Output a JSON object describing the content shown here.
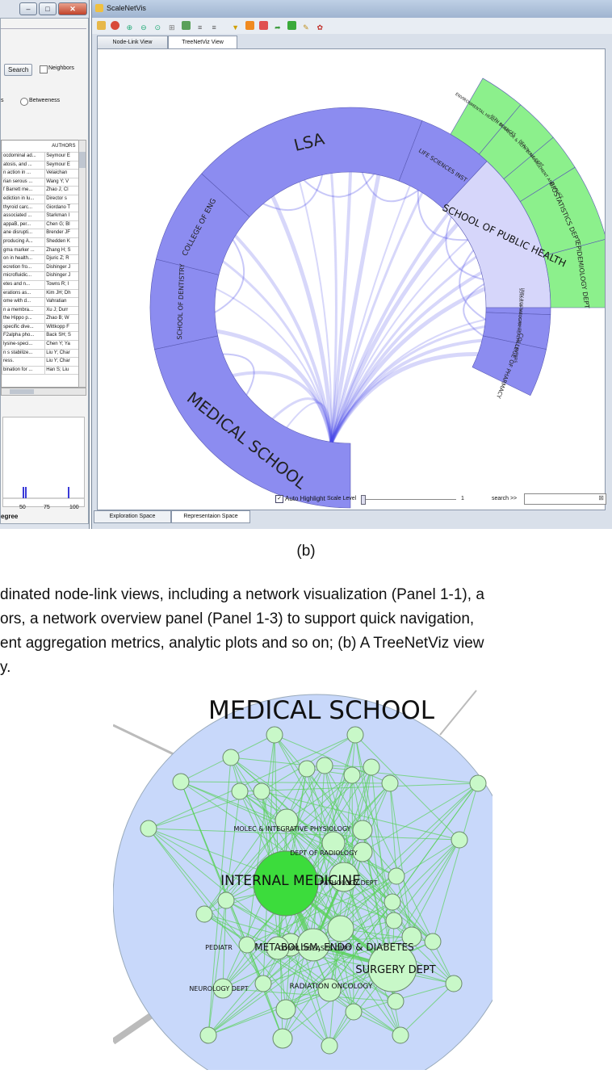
{
  "left_window": {
    "search_button": "Search",
    "neighbors_label": "Neighbors",
    "metric_fragment": "s",
    "betweenness_label": "Betweeness",
    "table_header": "AUTHORS",
    "rows": [
      {
        "title": "ocdominal ad...",
        "authors": "Seymour E"
      },
      {
        "title": "atosis, and ...",
        "authors": "Seymour E"
      },
      {
        "title": "n action in ...",
        "authors": "Velaichan"
      },
      {
        "title": "rian serous ...",
        "authors": "Wang Y; V"
      },
      {
        "title": "f Barrett me...",
        "authors": "Zhao J; Cl"
      },
      {
        "title": "ediction in lu...",
        "authors": "Director s"
      },
      {
        "title": "thyroid carc...",
        "authors": "Giordano T"
      },
      {
        "title": "associated ...",
        "authors": "Starkman I"
      },
      {
        "title": "appaB, per...",
        "authors": "Chen G; Bl"
      },
      {
        "title": "ane disrupti...",
        "authors": "Brender JF"
      },
      {
        "title": "producing A...",
        "authors": "Shedden K"
      },
      {
        "title": "gma marker ...",
        "authors": "Zhang H; S"
      },
      {
        "title": "on in health...",
        "authors": "Djuric Z; R"
      },
      {
        "title": "ecretion fro...",
        "authors": "Dishinger J"
      },
      {
        "title": "microfluidic...",
        "authors": "Dishinger J"
      },
      {
        "title": "etes and n...",
        "authors": "Towns R; I"
      },
      {
        "title": "erations as...",
        "authors": "Kim JH; Dh"
      },
      {
        "title": "ome with d...",
        "authors": "Vahratian"
      },
      {
        "title": "n a membra...",
        "authors": "Xu J; Durr"
      },
      {
        "title": "the Hippo p...",
        "authors": "Zhao B; W"
      },
      {
        "title": "specific dive...",
        "authors": "Wittkopp F"
      },
      {
        "title": "F2alpha pho...",
        "authors": "Back SH; S"
      },
      {
        "title": "lysine-speci...",
        "authors": "Chen Y; Ya"
      },
      {
        "title": "n s stabilize...",
        "authors": "Liu Y; Char"
      },
      {
        "title": "ress.",
        "authors": "Liu Y; Char"
      },
      {
        "title": "bination for ...",
        "authors": "Han S; Liu"
      }
    ],
    "plot": {
      "ticks": [
        "50",
        "75",
        "100"
      ],
      "xlabel": "egree"
    }
  },
  "right_window": {
    "title": "ScaleNetVis",
    "tabs": [
      "Node-Link View",
      "TreeNetViz View"
    ],
    "active_tab": 1,
    "auto_highlight_label": "Auto Highlight",
    "scale_level_label": "Scale Level",
    "scale_value": "1",
    "search_label": "search >>",
    "bottom_tabs": [
      "Exploration Space",
      "Representaion Space"
    ],
    "active_bottom_tab": 1
  },
  "radial": {
    "colors": {
      "purple": "#8c8cf0",
      "light": "#d6d6fa",
      "green": "#8cf08c",
      "edge": "#4a4ae8"
    },
    "schools": {
      "lsa": "LSA",
      "eng": "COLLEGE OF ENG",
      "dent": "SCHOOL OF DENTISTRY",
      "med": "MEDICAL SCHOOL",
      "sph": "SCHOOL OF PUBLIC HEALTH",
      "life": "LIFE SCIENCES INST",
      "univ": "UNIV ROSTATOGRA HEALTH CENTERS",
      "pharm": "COLLEGE OF PHARMACY",
      "sph_small": "SCHOOL OF PUBLIC HEALTH"
    },
    "depts": {
      "g1": "ENVIRONMENTAL HEALTH SCIENCES",
      "g2": "HLTH BEHAVIOR & HLTH EDUC DEPT",
      "g3": "HEALTH MANAGEMENT AND POLICY",
      "bio": "BIOSTATISTICS DEPT",
      "epi": "EPIDEMIOLOGY DEPT"
    }
  },
  "caption": {
    "label_b": "(b)",
    "line1": "dinated node-link views, including a network visualization (Panel 1-1), a",
    "line2": "ors, a network overview panel (Panel 1-3) to support quick navigation,",
    "line3": "ent aggregation metrics, analytic plots and so on; (b) A TreeNetViz view",
    "line4": "y."
  },
  "figc": {
    "title": "MEDICAL SCHOOL",
    "labels": {
      "molec": "MOLEC & INTEGRATIVE PHYSIOLOGY",
      "radiology": "DEPT OF RADIOLOGY",
      "internal": "INTERNAL MEDICINE",
      "pathology": "PATHOLOGY DEPT",
      "metab": "METABOLISM, ENDO & DIABETES",
      "comm": "COMM DISEASES DEPT",
      "pediatr": "PEDIATR",
      "surgery": "SURGERY DEPT",
      "neuro": "NEUROLOGY DEPT",
      "radonc": "RADIATION ONCOLOGY"
    },
    "colors": {
      "bg": "#c8d8fa",
      "node": "#c8f8c8",
      "big": "#3cdc3c",
      "edge": "#5ad25a"
    }
  }
}
